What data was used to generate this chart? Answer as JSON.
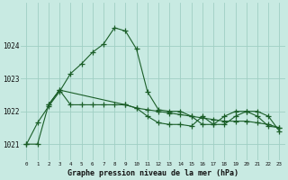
{
  "title": "Graphe pression niveau de la mer (hPa)",
  "background_color": "#c8eae2",
  "grid_color": "#a0cfc4",
  "line_color": "#1a5e28",
  "ylim": [
    1020.5,
    1025.3
  ],
  "yticks": [
    1021,
    1022,
    1023,
    1024
  ],
  "xlim": [
    -0.5,
    23.5
  ],
  "x_labels": [
    "0",
    "1",
    "2",
    "3",
    "4",
    "5",
    "6",
    "7",
    "8",
    "9",
    "10",
    "11",
    "12",
    "13",
    "14",
    "15",
    "16",
    "17",
    "18",
    "19",
    "20",
    "21",
    "22",
    "23"
  ],
  "series1_x": [
    0,
    1,
    2,
    3,
    4,
    5,
    6,
    7,
    8,
    9,
    10,
    11,
    12,
    13,
    14,
    15,
    16,
    17,
    18,
    19,
    20,
    21,
    22,
    23
  ],
  "series1_y": [
    1021.0,
    1021.65,
    1022.15,
    1022.6,
    1023.15,
    1023.45,
    1023.8,
    1024.05,
    1024.55,
    1024.45,
    1023.9,
    1022.6,
    1022.05,
    1022.0,
    1022.0,
    1021.85,
    1021.6,
    1021.6,
    1021.85,
    1022.0,
    1022.0,
    1021.85,
    1021.55,
    1021.5
  ],
  "series2_x": [
    0,
    1,
    2,
    3,
    4,
    5,
    6,
    7,
    8,
    9,
    10,
    11,
    12,
    13,
    14,
    15,
    16,
    17,
    18,
    19,
    20,
    21,
    22,
    23
  ],
  "series2_y": [
    1021.0,
    1021.0,
    1022.2,
    1022.65,
    1022.2,
    1022.2,
    1022.2,
    1022.2,
    1022.2,
    1022.2,
    1022.1,
    1022.05,
    1022.0,
    1021.95,
    1021.9,
    1021.85,
    1021.8,
    1021.75,
    1021.7,
    1021.7,
    1021.7,
    1021.65,
    1021.6,
    1021.5
  ],
  "series3_x": [
    2,
    3,
    9,
    10,
    11,
    12,
    13,
    14,
    15,
    16,
    17,
    18,
    19,
    20,
    21,
    22,
    23
  ],
  "series3_y": [
    1022.2,
    1022.65,
    1022.2,
    1022.1,
    1021.85,
    1021.65,
    1021.6,
    1021.6,
    1021.55,
    1021.85,
    1021.6,
    1021.6,
    1021.85,
    1022.0,
    1022.0,
    1021.85,
    1021.4
  ]
}
